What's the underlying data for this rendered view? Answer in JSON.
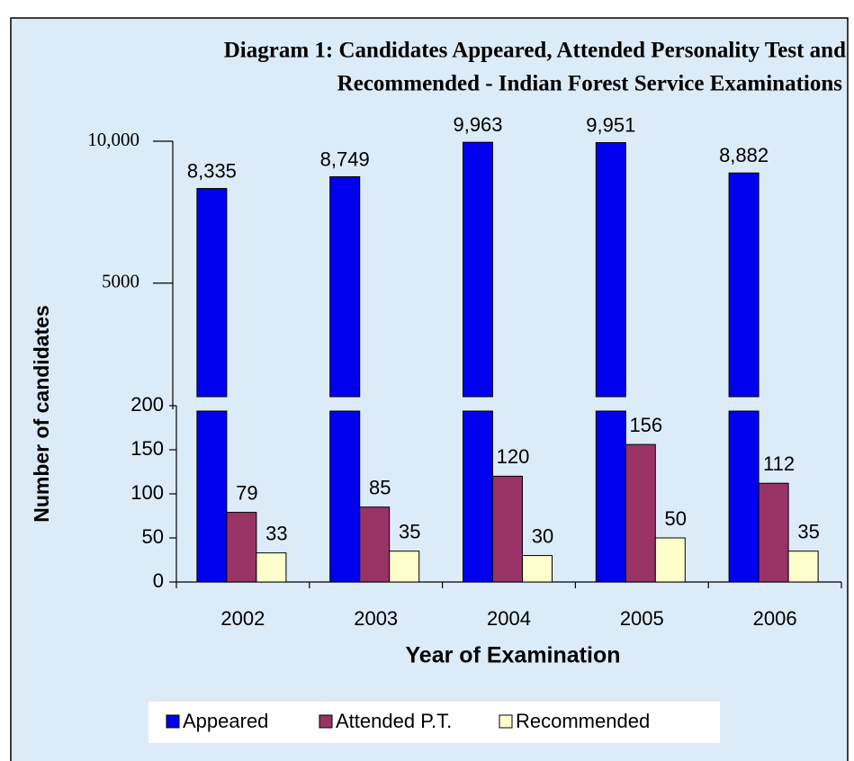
{
  "chart_data": {
    "type": "bar",
    "title": [
      "Diagram 1: Candidates Appeared, Attended Personality Test and",
      "Recommended - Indian Forest Service Examinations"
    ],
    "xlabel": "Year of Examination",
    "ylabel": "Number of candidates",
    "categories": [
      "2002",
      "2003",
      "2004",
      "2005",
      "2006"
    ],
    "series": [
      {
        "name": "Appeared",
        "color": "#0000ee",
        "values": [
          8335,
          8749,
          9963,
          9951,
          8882
        ],
        "value_labels": [
          "8,335",
          "8,749",
          "9,963",
          "9,951",
          "8,882"
        ]
      },
      {
        "name": "Attended P.T.",
        "color": "#993366",
        "values": [
          79,
          85,
          120,
          156,
          112
        ]
      },
      {
        "name": "Recommended",
        "color": "#ffffcc",
        "values": [
          33,
          35,
          30,
          50,
          35
        ]
      }
    ],
    "ylim": [
      0,
      200
    ],
    "yticks": [
      0,
      50,
      100,
      150,
      200
    ],
    "upper_axis": {
      "ylim": [
        1000,
        10000
      ],
      "yticks": [
        {
          "value": 10000,
          "label": "10,000"
        },
        5000
      ]
    },
    "legend": "bottom"
  }
}
